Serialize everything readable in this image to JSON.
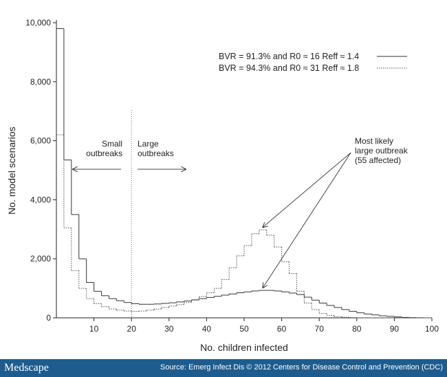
{
  "chart_data": {
    "type": "step",
    "xlabel": "No. children infected",
    "ylabel": "No. model scenarios",
    "x": [
      1,
      3,
      5,
      7,
      9,
      11,
      13,
      15,
      17,
      19,
      21,
      23,
      25,
      27,
      29,
      31,
      33,
      35,
      37,
      39,
      41,
      43,
      45,
      47,
      49,
      51,
      53,
      55,
      57,
      59,
      61,
      63,
      65,
      67,
      69,
      71,
      73,
      75,
      77,
      79,
      81,
      83,
      85,
      87,
      89,
      91,
      93,
      95,
      97,
      99
    ],
    "series": [
      {
        "name": "BVR = 91.3% and R0 ≈ 16  Reff ≈ 1.4",
        "color": "#333333",
        "dash": "solid",
        "values": [
          9800,
          5350,
          3500,
          2000,
          1200,
          900,
          750,
          650,
          580,
          520,
          480,
          460,
          460,
          470,
          490,
          510,
          540,
          570,
          610,
          650,
          690,
          730,
          770,
          810,
          850,
          880,
          910,
          930,
          930,
          910,
          880,
          840,
          790,
          700,
          600,
          500,
          420,
          350,
          280,
          220,
          170,
          130,
          100,
          70,
          50,
          30,
          15,
          8,
          3,
          0
        ]
      },
      {
        "name": "BVR = 94.3% and R0 ≈ 31  Reff ≈ 1.8",
        "color": "#555555",
        "dash": "dotted",
        "values": [
          6200,
          3050,
          1600,
          1000,
          650,
          480,
          380,
          300,
          260,
          230,
          220,
          230,
          260,
          300,
          350,
          400,
          450,
          520,
          600,
          720,
          850,
          1000,
          1300,
          1700,
          2100,
          2450,
          2850,
          2980,
          2800,
          2400,
          1900,
          1500,
          900,
          500,
          280,
          150,
          80,
          40,
          20,
          10,
          0,
          0,
          0,
          0,
          0,
          0,
          0,
          0,
          0,
          0
        ]
      }
    ],
    "xlim": [
      0,
      100
    ],
    "xticks": [
      10,
      20,
      30,
      40,
      50,
      60,
      70,
      80,
      90,
      100
    ],
    "ylim": [
      0,
      10000
    ],
    "yticks": [
      0,
      {
        "value": 2000,
        "label": "2,000"
      },
      {
        "value": 4000,
        "label": "4,000"
      },
      {
        "value": 6000,
        "label": "6,000"
      },
      {
        "value": 8000,
        "label": "8,000"
      },
      {
        "value": 10000,
        "label": "10,000"
      }
    ],
    "annotations": {
      "small": [
        "Small",
        "outbreaks"
      ],
      "large": [
        "Large",
        "outbreaks"
      ],
      "peak": [
        "Most likely",
        "large outbreak",
        "(55 affected)"
      ]
    }
  },
  "footer": {
    "brand": "Medscape",
    "source": "Source: Emerg Infect Dis © 2012 Centers for Disease Control and Prevention (CDC)"
  }
}
